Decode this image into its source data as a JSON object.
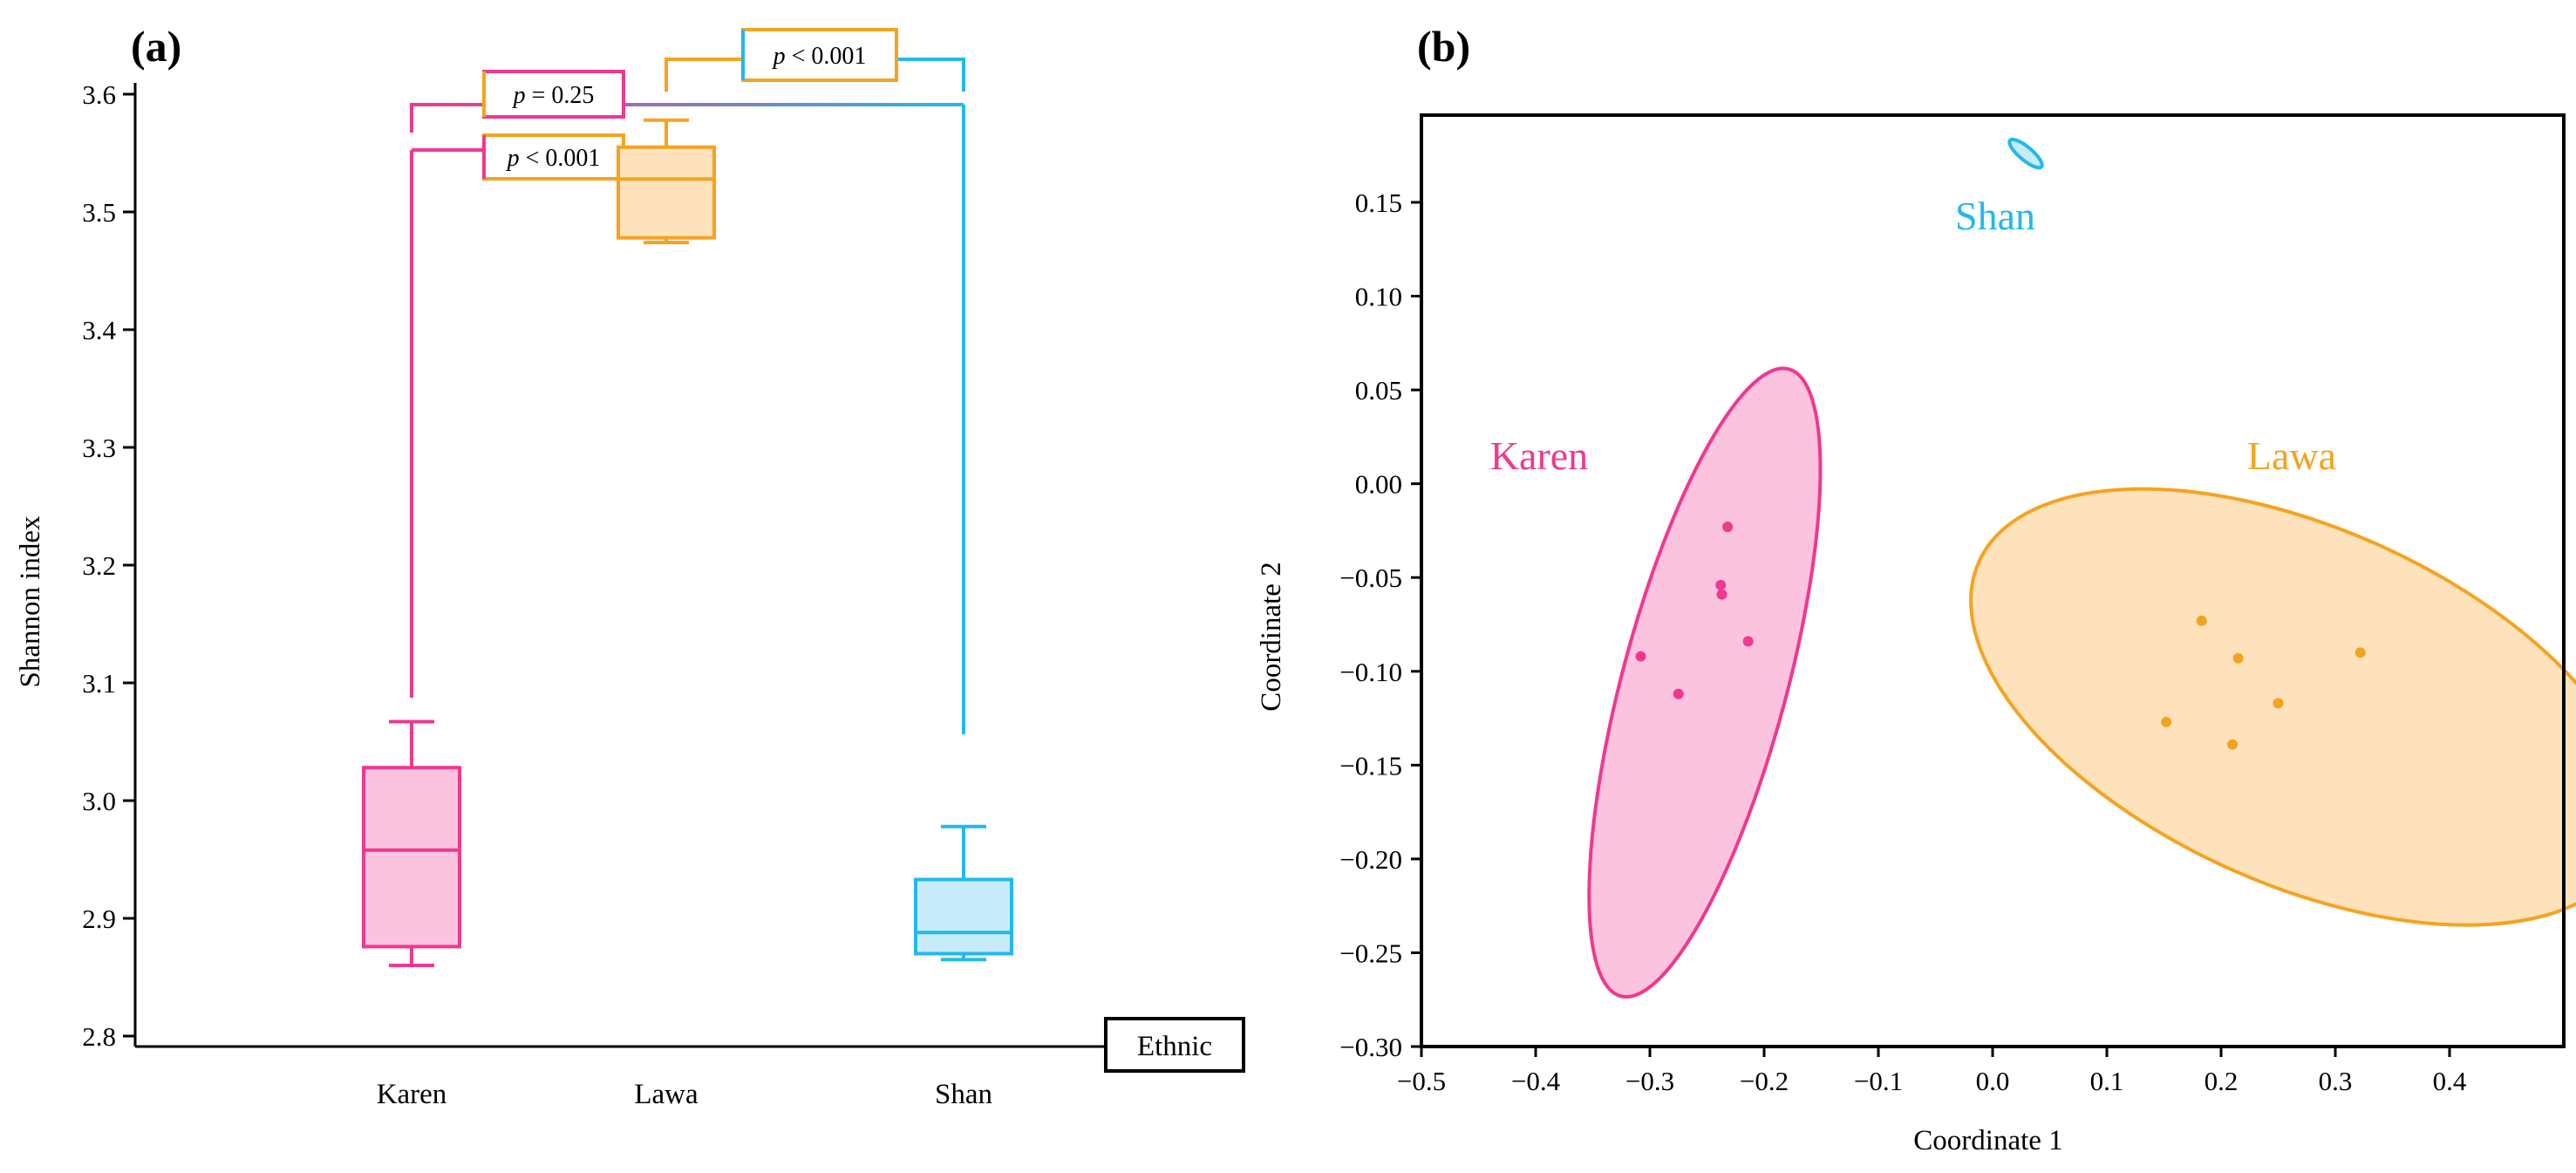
{
  "colors": {
    "karen": "#f0388f",
    "lawa": "#f5a31f",
    "shan": "#22b8ee",
    "karen_fill": "#fcc3de",
    "lawa_fill": "#fde2bb",
    "shan_fill": "#c8ebfa",
    "axis": "#000000"
  },
  "chart_data": [
    {
      "panel_label": "(a)",
      "type": "box",
      "ylabel": "Shannon index",
      "categories": [
        "Karen",
        "Lawa",
        "Shan"
      ],
      "yticks": [
        "2.8",
        "2.9",
        "3.0",
        "3.1",
        "3.2",
        "3.3",
        "3.4",
        "3.5",
        "3.6"
      ],
      "ylim": [
        2.78,
        3.66
      ],
      "legend_box": "Ethnic",
      "boxes": [
        {
          "name": "Karen",
          "min": 2.86,
          "q1": 2.876,
          "median": 2.958,
          "q3": 3.028,
          "max": 3.067
        },
        {
          "name": "Lawa",
          "min": 3.474,
          "q1": 3.478,
          "median": 3.528,
          "q3": 3.555,
          "max": 3.578
        },
        {
          "name": "Shan",
          "min": 2.865,
          "q1": 2.87,
          "median": 2.888,
          "q3": 2.933,
          "max": 2.978
        }
      ],
      "comparisons": [
        {
          "groups": [
            "Karen",
            "Lawa"
          ],
          "label": "p < 0.001",
          "p_symbol": "p",
          "p_rest": " < 0.001"
        },
        {
          "groups": [
            "Karen",
            "Shan"
          ],
          "label": "p = 0.25",
          "p_symbol": "p",
          "p_rest": " = 0.25"
        },
        {
          "groups": [
            "Lawa",
            "Shan"
          ],
          "label": "p < 0.001",
          "p_symbol": "p",
          "p_rest": " < 0.001"
        }
      ]
    },
    {
      "panel_label": "(b)",
      "type": "scatter",
      "xlabel": "Coordinate 1",
      "ylabel": "Coordinate 2",
      "xticks": [
        "−0.5",
        "−0.4",
        "−0.3",
        "−0.2",
        "−0.1",
        "0.0",
        "0.1",
        "0.2",
        "0.3",
        "0.4"
      ],
      "yticks": [
        "−0.30",
        "−0.25",
        "−0.20",
        "−0.15",
        "−0.10",
        "−0.05",
        "0.00",
        "0.05",
        "0.10",
        "0.15"
      ],
      "xlim": [
        -0.5,
        0.5
      ],
      "ylim": [
        -0.3,
        0.2
      ],
      "series": [
        {
          "name": "Karen",
          "label": "Karen",
          "points": [
            [
              -0.232,
              -0.023
            ],
            [
              -0.238,
              -0.054
            ],
            [
              -0.237,
              -0.059
            ],
            [
              -0.214,
              -0.084
            ],
            [
              -0.308,
              -0.092
            ],
            [
              -0.275,
              -0.112
            ]
          ],
          "ellipse": {
            "cx": -0.252,
            "cy": -0.106,
            "rx": 0.072,
            "ry": 0.173,
            "angle": 15
          }
        },
        {
          "name": "Lawa",
          "label": "Lawa",
          "points": [
            [
              0.183,
              -0.073
            ],
            [
              0.215,
              -0.093
            ],
            [
              0.322,
              -0.09
            ],
            [
              0.25,
              -0.117
            ],
            [
              0.152,
              -0.127
            ],
            [
              0.21,
              -0.139
            ]
          ],
          "ellipse": {
            "cx": 0.273,
            "cy": -0.119,
            "rx": 0.312,
            "ry": 0.095,
            "angle": 24
          }
        },
        {
          "name": "Shan",
          "label": "Shan",
          "points": [],
          "ellipse": {
            "cx": 0.029,
            "cy": 0.176,
            "rx": 0.018,
            "ry": 0.0035,
            "angle": 40
          }
        }
      ]
    }
  ]
}
